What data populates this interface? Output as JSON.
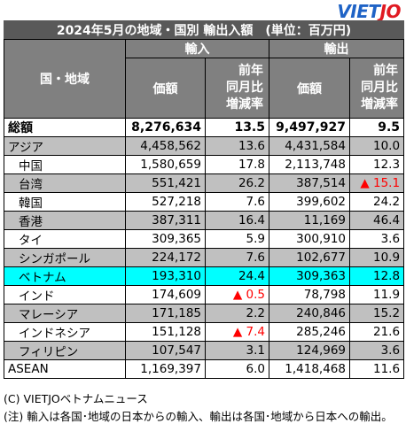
{
  "logo": {
    "part1": "VIET",
    "part2": "JO"
  },
  "title": "2024年5月の地域・国別 輸出入額　(単位：百万円)",
  "headers": {
    "region": "国・地域",
    "import": "輸入",
    "export": "輸出",
    "value": "価額",
    "change_line1": "前年",
    "change_line2": "同月比",
    "change_line3": "増減率"
  },
  "rows": [
    {
      "name": "総額",
      "imp": "8,276,634",
      "imp_chg": "13.5",
      "exp": "9,497,927",
      "exp_chg": "9.5",
      "style": "total",
      "indent": false
    },
    {
      "name": "アジア",
      "imp": "4,458,562",
      "imp_chg": "13.6",
      "exp": "4,431,584",
      "exp_chg": "10.0",
      "style": "grey",
      "indent": false
    },
    {
      "name": "中国",
      "imp": "1,580,659",
      "imp_chg": "17.8",
      "exp": "2,113,748",
      "exp_chg": "12.3",
      "style": "white",
      "indent": true
    },
    {
      "name": "台湾",
      "imp": "551,421",
      "imp_chg": "26.2",
      "exp": "387,514",
      "exp_chg": "▲ 15.1",
      "style": "grey",
      "indent": true,
      "exp_neg": true
    },
    {
      "name": "韓国",
      "imp": "527,218",
      "imp_chg": "7.6",
      "exp": "399,602",
      "exp_chg": "24.2",
      "style": "white",
      "indent": true
    },
    {
      "name": "香港",
      "imp": "387,311",
      "imp_chg": "16.4",
      "exp": "11,169",
      "exp_chg": "46.4",
      "style": "grey",
      "indent": true
    },
    {
      "name": "タイ",
      "imp": "309,365",
      "imp_chg": "5.9",
      "exp": "300,910",
      "exp_chg": "3.6",
      "style": "white",
      "indent": true
    },
    {
      "name": "シンガポール",
      "imp": "224,172",
      "imp_chg": "7.6",
      "exp": "102,677",
      "exp_chg": "10.9",
      "style": "grey",
      "indent": true
    },
    {
      "name": "ベトナム",
      "imp": "193,310",
      "imp_chg": "24.4",
      "exp": "309,363",
      "exp_chg": "12.8",
      "style": "hl",
      "indent": true
    },
    {
      "name": "インド",
      "imp": "174,609",
      "imp_chg": "▲ 0.5",
      "exp": "78,798",
      "exp_chg": "11.9",
      "style": "white",
      "indent": true,
      "imp_neg": true
    },
    {
      "name": "マレーシア",
      "imp": "171,185",
      "imp_chg": "2.2",
      "exp": "240,846",
      "exp_chg": "15.2",
      "style": "grey",
      "indent": true
    },
    {
      "name": "インドネシア",
      "imp": "151,128",
      "imp_chg": "▲ 7.4",
      "exp": "285,246",
      "exp_chg": "21.6",
      "style": "white",
      "indent": true,
      "imp_neg": true
    },
    {
      "name": "フィリピン",
      "imp": "107,547",
      "imp_chg": "3.1",
      "exp": "124,969",
      "exp_chg": "3.6",
      "style": "grey",
      "indent": true
    },
    {
      "name": "ASEAN",
      "imp": "1,169,397",
      "imp_chg": "6.0",
      "exp": "1,418,468",
      "exp_chg": "11.6",
      "style": "white",
      "indent": false
    }
  ],
  "notes": {
    "copyright": "(C) VIETJOベトナムニュース",
    "note": "(注) 輸入は各国･地域の日本からの輸入、輸出は各国･地域から日本への輸出。"
  }
}
